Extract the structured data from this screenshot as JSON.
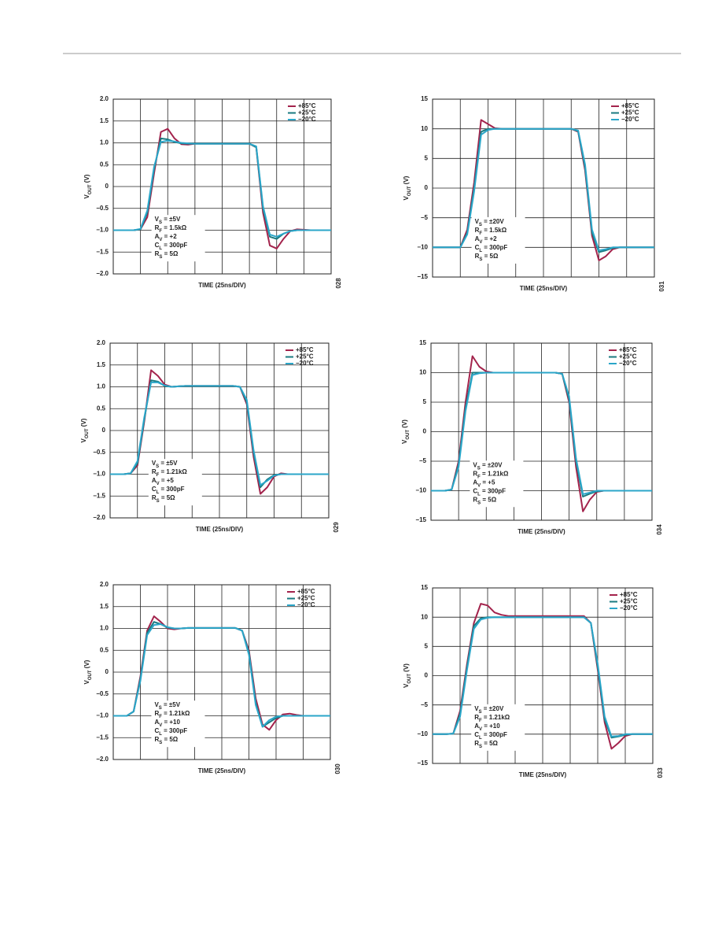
{
  "chart_data": [
    {
      "type": "line",
      "x_label": "TIME (25ns/DIV)",
      "y_label": {
        "main": "V",
        "sub": "OUT",
        "rest": " (V)"
      },
      "figure_id": "028",
      "ylim": [
        -2,
        2
      ],
      "yticks": [
        {
          "value": -2,
          "label": "−2.0"
        },
        {
          "value": -1.5,
          "label": "−1.5"
        },
        {
          "value": -1,
          "label": "−1.0"
        },
        {
          "value": -0.5,
          "label": "−0.5"
        },
        0,
        0.5,
        {
          "value": 1,
          "label": "1.0"
        },
        1.5,
        {
          "value": 2,
          "label": "2.0"
        }
      ],
      "grid": true,
      "legend": "upper right",
      "annotation": [
        {
          "main": "V",
          "sub": "S",
          "rest": " = ±5V"
        },
        {
          "main": "R",
          "sub": "F",
          "rest": " = 1.5kΩ"
        },
        {
          "main": "A",
          "sub": "V",
          "rest": " = +2"
        },
        {
          "main": "C",
          "sub": "L",
          "rest": " = 300pF"
        },
        {
          "main": "R",
          "sub": "S",
          "rest": " = 5Ω"
        }
      ],
      "series": [
        {
          "name": "+85°C",
          "color": "#a3234c",
          "values": [
            -1,
            -1,
            -1,
            -1,
            -0.98,
            -0.7,
            0.3,
            1.25,
            1.32,
            1.1,
            0.97,
            0.96,
            0.98,
            0.98,
            0.98,
            0.98,
            0.98,
            0.98,
            0.98,
            0.98,
            0.98,
            0.9,
            -0.6,
            -1.35,
            -1.42,
            -1.2,
            -1.02,
            -0.98,
            -0.99,
            -1,
            -1,
            -1,
            -1
          ]
        },
        {
          "name": "+25°C",
          "color": "#1a7a80",
          "values": [
            -1,
            -1,
            -1,
            -1,
            -0.98,
            -0.6,
            0.4,
            1.1,
            1.08,
            1.02,
            0.99,
            0.98,
            0.98,
            0.98,
            0.98,
            0.98,
            0.98,
            0.98,
            0.98,
            0.98,
            0.98,
            0.9,
            -0.5,
            -1.15,
            -1.2,
            -1.08,
            -1.02,
            -1,
            -1,
            -1,
            -1,
            -1,
            -1
          ]
        },
        {
          "name": "−20°C",
          "color": "#2ba6c9",
          "values": [
            -1,
            -1,
            -1,
            -1,
            -0.97,
            -0.55,
            0.45,
            1.02,
            1.05,
            1.03,
            1,
            0.99,
            0.98,
            0.98,
            0.98,
            0.98,
            0.98,
            0.98,
            0.98,
            0.98,
            0.98,
            0.92,
            -0.45,
            -1.1,
            -1.15,
            -1.08,
            -1.02,
            -1,
            -1,
            -1,
            -1,
            -1,
            -1
          ]
        }
      ]
    },
    {
      "type": "line",
      "x_label": "TIME (25ns/DIV)",
      "y_label": {
        "main": "V",
        "sub": "OUT",
        "rest": " (V)"
      },
      "figure_id": "031",
      "ylim": [
        -15,
        15
      ],
      "yticks": [
        {
          "value": -15,
          "label": "−15"
        },
        {
          "value": -10,
          "label": "−10"
        },
        {
          "value": -5,
          "label": "−5"
        },
        0,
        5,
        10,
        15
      ],
      "grid": true,
      "legend": "upper right",
      "annotation": [
        {
          "main": "V",
          "sub": "S",
          "rest": " = ±20V"
        },
        {
          "main": "R",
          "sub": "F",
          "rest": " = 1.5kΩ"
        },
        {
          "main": "A",
          "sub": "V",
          "rest": " = +2"
        },
        {
          "main": "C",
          "sub": "L",
          "rest": " = 300pF"
        },
        {
          "main": "R",
          "sub": "S",
          "rest": " = 5Ω"
        }
      ],
      "series": [
        {
          "name": "+85°C",
          "color": "#a3234c",
          "values": [
            -10,
            -10,
            -10,
            -10,
            -10,
            -7,
            1,
            11.5,
            10.8,
            10.1,
            10,
            10,
            10,
            10,
            10,
            10,
            10,
            10,
            10,
            10,
            10,
            9.5,
            3,
            -8,
            -12.2,
            -11.5,
            -10.3,
            -10,
            -10,
            -10,
            -10,
            -10,
            -10
          ]
        },
        {
          "name": "+25°C",
          "color": "#1a7a80",
          "values": [
            -10,
            -10,
            -10,
            -10,
            -10,
            -7.5,
            0,
            9.5,
            10,
            10,
            10,
            10,
            10,
            10,
            10,
            10,
            10,
            10,
            10,
            10,
            10,
            9.6,
            3.5,
            -7.5,
            -10.8,
            -10.5,
            -10.1,
            -10,
            -10,
            -10,
            -10,
            -10,
            -10
          ]
        },
        {
          "name": "−20°C",
          "color": "#2ba6c9",
          "values": [
            -10,
            -10,
            -10,
            -10,
            -10,
            -7.8,
            -0.5,
            9,
            9.8,
            10,
            10,
            10,
            10,
            10,
            10,
            10,
            10,
            10,
            10,
            10,
            10,
            9.7,
            4,
            -7,
            -10.5,
            -10.3,
            -10,
            -10,
            -10,
            -10,
            -10,
            -10,
            -10
          ]
        }
      ]
    },
    {
      "type": "line",
      "x_label": "TIME (25ns/DIV)",
      "y_label": {
        "main": "V",
        "sub": "OUT",
        "rest": " (V)"
      },
      "figure_id": "029",
      "ylim": [
        -2,
        2
      ],
      "yticks": [
        {
          "value": -2,
          "label": "−2.0"
        },
        {
          "value": -1.5,
          "label": "−1.5"
        },
        {
          "value": -1,
          "label": "−1.0"
        },
        {
          "value": -0.5,
          "label": "−0.5"
        },
        0,
        0.5,
        {
          "value": 1,
          "label": "1.0"
        },
        1.5,
        {
          "value": 2,
          "label": "2.0"
        }
      ],
      "grid": true,
      "legend": "upper right",
      "annotation": [
        {
          "main": "V",
          "sub": "S",
          "rest": " = ±5V"
        },
        {
          "main": "R",
          "sub": "F",
          "rest": " = 1.21kΩ"
        },
        {
          "main": "A",
          "sub": "V",
          "rest": " = +5"
        },
        {
          "main": "C",
          "sub": "L",
          "rest": " = 300pF"
        },
        {
          "main": "R",
          "sub": "S",
          "rest": " = 5Ω"
        }
      ],
      "series": [
        {
          "name": "+85°C",
          "color": "#a3234c",
          "values": [
            -1,
            -1,
            -1,
            -0.98,
            -0.8,
            0.2,
            1.38,
            1.25,
            1.05,
            1,
            1.01,
            1.02,
            1.02,
            1.02,
            1.02,
            1.02,
            1.02,
            1.02,
            1.02,
            1,
            0.6,
            -0.6,
            -1.45,
            -1.3,
            -1.05,
            -0.98,
            -1,
            -1,
            -1,
            -1,
            -1,
            -1,
            -1
          ]
        },
        {
          "name": "+25°C",
          "color": "#1a7a80",
          "values": [
            -1,
            -1,
            -1,
            -0.98,
            -0.75,
            0.25,
            1.15,
            1.12,
            1.02,
            1,
            1.01,
            1.02,
            1.02,
            1.02,
            1.02,
            1.02,
            1.02,
            1.02,
            1.02,
            1,
            0.65,
            -0.5,
            -1.3,
            -1.12,
            -1.02,
            -1,
            -1,
            -1,
            -1,
            -1,
            -1,
            -1,
            -1
          ]
        },
        {
          "name": "−20°C",
          "color": "#2ba6c9",
          "values": [
            -1,
            -1,
            -1,
            -0.98,
            -0.7,
            0.3,
            1.1,
            1.1,
            1.03,
            1,
            1.01,
            1.02,
            1.02,
            1.02,
            1.02,
            1.02,
            1.02,
            1.02,
            1.02,
            1,
            0.7,
            -0.45,
            -1.25,
            -1.15,
            -1.03,
            -1,
            -1,
            -1,
            -1,
            -1,
            -1,
            -1,
            -1
          ]
        }
      ]
    },
    {
      "type": "line",
      "x_label": "TIME (25ns/DIV)",
      "y_label": {
        "main": "V",
        "sub": "OUT",
        "rest": " (V)"
      },
      "figure_id": "034",
      "ylim": [
        -15,
        15
      ],
      "yticks": [
        {
          "value": -15,
          "label": "−15"
        },
        {
          "value": -10,
          "label": "−10"
        },
        {
          "value": -5,
          "label": "−5"
        },
        0,
        5,
        10,
        15
      ],
      "grid": true,
      "legend": "upper right",
      "annotation": [
        {
          "main": "V",
          "sub": "S",
          "rest": " = ±20V"
        },
        {
          "main": "R",
          "sub": "F",
          "rest": " = 1.21kΩ"
        },
        {
          "main": "A",
          "sub": "V",
          "rest": " = +5"
        },
        {
          "main": "C",
          "sub": "L",
          "rest": " = 300pF"
        },
        {
          "main": "R",
          "sub": "S",
          "rest": " = 5Ω"
        }
      ],
      "series": [
        {
          "name": "+85°C",
          "color": "#a3234c",
          "values": [
            -10,
            -10,
            -10,
            -9.8,
            -5,
            5,
            12.8,
            11,
            10.2,
            10,
            10,
            10,
            10,
            10,
            10,
            10,
            10,
            10,
            10,
            9.8,
            5,
            -6,
            -13.5,
            -11.5,
            -10.2,
            -10,
            -10,
            -10,
            -10,
            -10,
            -10,
            -10,
            -10
          ]
        },
        {
          "name": "+25°C",
          "color": "#1a7a80",
          "values": [
            -10,
            -10,
            -10,
            -9.8,
            -5.5,
            4,
            10,
            10,
            10,
            10,
            10,
            10,
            10,
            10,
            10,
            10,
            10,
            10,
            10,
            9.8,
            5.5,
            -5,
            -11,
            -10.5,
            -10.1,
            -10,
            -10,
            -10,
            -10,
            -10,
            -10,
            -10,
            -10
          ]
        },
        {
          "name": "−20°C",
          "color": "#2ba6c9",
          "values": [
            -10,
            -10,
            -10,
            -9.8,
            -6,
            3.5,
            9.6,
            9.9,
            10,
            10,
            10,
            10,
            10,
            10,
            10,
            10,
            10,
            10,
            10,
            9.8,
            6,
            -4.5,
            -10.6,
            -10.3,
            -10,
            -10,
            -10,
            -10,
            -10,
            -10,
            -10,
            -10,
            -10
          ]
        }
      ]
    },
    {
      "type": "line",
      "x_label": "TIME (25ns/DIV)",
      "y_label": {
        "main": "V",
        "sub": "OUT",
        "rest": " (V)"
      },
      "figure_id": "030",
      "ylim": [
        -2,
        2
      ],
      "yticks": [
        {
          "value": -2,
          "label": "−2.0"
        },
        {
          "value": -1.5,
          "label": "−1.5"
        },
        {
          "value": -1,
          "label": "−1.0"
        },
        {
          "value": -0.5,
          "label": "−0.5"
        },
        0,
        0.5,
        {
          "value": 1,
          "label": "1.0"
        },
        1.5,
        {
          "value": 2,
          "label": "2.0"
        }
      ],
      "grid": true,
      "legend": "upper right",
      "annotation": [
        {
          "main": "V",
          "sub": "S",
          "rest": " = ±5V"
        },
        {
          "main": "R",
          "sub": "F",
          "rest": " = 1.21kΩ"
        },
        {
          "main": "A",
          "sub": "V",
          "rest": " = +10"
        },
        {
          "main": "C",
          "sub": "L",
          "rest": " = 300pF"
        },
        {
          "main": "R",
          "sub": "S",
          "rest": " = 5Ω"
        }
      ],
      "series": [
        {
          "name": "+85°C",
          "color": "#a3234c",
          "values": [
            -1,
            -1,
            -1,
            -0.9,
            -0.1,
            0.95,
            1.28,
            1.15,
            1,
            0.98,
            1,
            1.01,
            1.01,
            1.01,
            1.01,
            1.01,
            1.01,
            1.01,
            1.01,
            0.95,
            0.5,
            -0.6,
            -1.2,
            -1.32,
            -1.1,
            -0.97,
            -0.95,
            -0.98,
            -1,
            -1,
            -1,
            -1,
            -1
          ]
        },
        {
          "name": "+25°C",
          "color": "#1a7a80",
          "values": [
            -1,
            -1,
            -1,
            -0.9,
            -0.15,
            0.9,
            1.15,
            1.1,
            1.02,
            1,
            1,
            1.01,
            1.01,
            1.01,
            1.01,
            1.01,
            1.01,
            1.01,
            1.01,
            0.95,
            0.45,
            -0.7,
            -1.25,
            -1.15,
            -1.05,
            -1,
            -1,
            -1,
            -1,
            -1,
            -1,
            -1,
            -1
          ]
        },
        {
          "name": "−20°C",
          "color": "#2ba6c9",
          "values": [
            -1,
            -1,
            -1,
            -0.9,
            -0.2,
            0.85,
            1.08,
            1.1,
            1.03,
            1,
            1,
            1.01,
            1.01,
            1.01,
            1.01,
            1.01,
            1.01,
            1.01,
            1.01,
            0.95,
            0.4,
            -0.75,
            -1.25,
            -1.1,
            -1.02,
            -1,
            -1,
            -1,
            -1,
            -1,
            -1,
            -1,
            -1
          ]
        }
      ]
    },
    {
      "type": "line",
      "x_label": "TIME (25ns/DIV)",
      "y_label": {
        "main": "V",
        "sub": "OUT",
        "rest": " (V)"
      },
      "figure_id": "033",
      "ylim": [
        -15,
        15
      ],
      "yticks": [
        {
          "value": -15,
          "label": "−15"
        },
        {
          "value": -10,
          "label": "−10"
        },
        {
          "value": -5,
          "label": "−5"
        },
        0,
        5,
        10,
        15
      ],
      "grid": true,
      "legend": "upper right",
      "annotation": [
        {
          "main": "V",
          "sub": "S",
          "rest": " = ±20V"
        },
        {
          "main": "R",
          "sub": "F",
          "rest": " = 1.21kΩ"
        },
        {
          "main": "A",
          "sub": "V",
          "rest": " = +10"
        },
        {
          "main": "C",
          "sub": "L",
          "rest": " = 300pF"
        },
        {
          "main": "R",
          "sub": "S",
          "rest": " = 5Ω"
        }
      ],
      "series": [
        {
          "name": "+85°C",
          "color": "#a3234c",
          "values": [
            -10,
            -10,
            -10,
            -9.9,
            -6,
            2,
            9,
            12.3,
            12,
            10.8,
            10.4,
            10.2,
            10.2,
            10.2,
            10.2,
            10.2,
            10.2,
            10.2,
            10.2,
            10.2,
            10.2,
            10.2,
            10.2,
            9,
            1,
            -8,
            -12.5,
            -11.5,
            -10.3,
            -10,
            -10,
            -10,
            -10
          ]
        },
        {
          "name": "+25°C",
          "color": "#1a7a80",
          "values": [
            -10,
            -10,
            -10,
            -9.9,
            -6.5,
            1.5,
            8.5,
            9.8,
            10,
            10,
            10,
            10,
            10,
            10,
            10,
            10,
            10,
            10,
            10,
            10,
            10,
            10,
            10,
            9,
            1.5,
            -7.5,
            -10.6,
            -10.4,
            -10.1,
            -10,
            -10,
            -10,
            -10
          ]
        },
        {
          "name": "−20°C",
          "color": "#2ba6c9",
          "values": [
            -10,
            -10,
            -10,
            -9.9,
            -7,
            1,
            8,
            9.6,
            9.9,
            10,
            10,
            10,
            10,
            10,
            10,
            10,
            10,
            10,
            10,
            10,
            10,
            10,
            10,
            9,
            2,
            -7,
            -10.4,
            -10.3,
            -10,
            -10,
            -10,
            -10,
            -10
          ]
        }
      ]
    }
  ]
}
